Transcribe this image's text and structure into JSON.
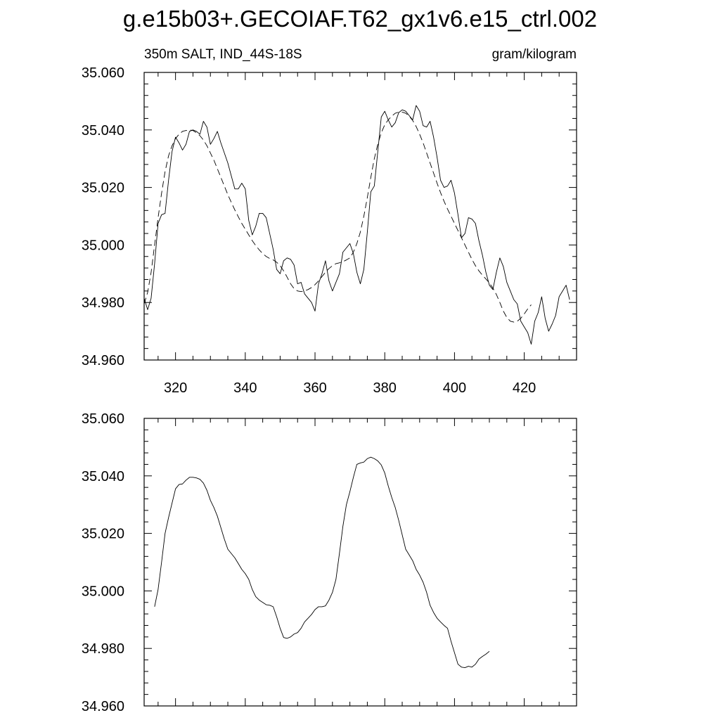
{
  "figure": {
    "title": "g.e15b03+.GECOIAF.T62_gx1v6.e15_ctrl.002",
    "left_string": "350m SALT, IND_44S-18S",
    "right_string": "gram/kilogram"
  },
  "chart_data": [
    {
      "type": "line",
      "panel": "top",
      "xlim": [
        311,
        435
      ],
      "ylim": [
        34.96,
        35.06
      ],
      "x_ticks": [
        320,
        340,
        360,
        380,
        400,
        420
      ],
      "y_ticks": [
        34.96,
        34.98,
        35.0,
        35.02,
        35.04,
        35.06
      ],
      "x_tick_labels": [
        "320",
        "340",
        "360",
        "380",
        "400",
        "420"
      ],
      "y_tick_labels": [
        "34.960",
        "34.980",
        "35.000",
        "35.020",
        "35.040",
        "35.060"
      ],
      "x_start": 311,
      "x_step": 1,
      "series": [
        {
          "style": "solid",
          "values": [
            34.9815,
            34.9775,
            34.9815,
            34.9935,
            35.0075,
            35.0105,
            35.011,
            35.0225,
            35.0325,
            35.0375,
            35.0355,
            35.033,
            35.035,
            35.0395,
            35.04,
            35.0395,
            35.0385,
            35.043,
            35.041,
            35.035,
            35.037,
            35.0395,
            35.0355,
            35.032,
            35.0285,
            35.024,
            35.0195,
            35.0195,
            35.0215,
            35.0195,
            35.0085,
            35.0035,
            35.0065,
            35.011,
            35.011,
            35.0095,
            35.004,
            34.9985,
            34.9915,
            34.99,
            34.9945,
            34.9955,
            34.995,
            34.993,
            34.9865,
            34.987,
            34.983,
            34.9815,
            34.98,
            34.977,
            34.9865,
            34.99,
            34.9945,
            34.9875,
            34.984,
            34.987,
            34.99,
            34.9975,
            34.999,
            35.0005,
            34.997,
            34.9905,
            34.9865,
            34.9915,
            35.0045,
            35.0185,
            35.0205,
            35.0325,
            35.0445,
            35.0465,
            35.0435,
            35.041,
            35.0425,
            35.046,
            35.047,
            35.0465,
            35.045,
            35.0435,
            35.0485,
            35.0465,
            35.0415,
            35.041,
            35.043,
            35.0375,
            35.0305,
            35.0225,
            35.02,
            35.0205,
            35.0225,
            35.018,
            35.0105,
            35.0025,
            35.004,
            35.0095,
            35.009,
            35.0075,
            35.0015,
            34.9965,
            34.9905,
            34.986,
            34.9845,
            34.9905,
            34.9955,
            34.9925,
            34.987,
            34.984,
            34.981,
            34.9795,
            34.9735,
            34.9715,
            34.9695,
            34.9655,
            34.9735,
            34.9765,
            34.982,
            34.9745,
            34.97,
            34.9725,
            34.9755,
            34.982,
            34.984,
            34.986,
            34.981
          ]
        },
        {
          "style": "dashed",
          "values": [
            34.9795,
            34.9835,
            34.9905,
            35.0,
            35.0095,
            35.018,
            35.0255,
            35.031,
            35.0345,
            35.037,
            35.0385,
            35.0395,
            35.0398,
            35.04,
            35.0398,
            35.039,
            35.038,
            35.0365,
            35.0345,
            35.032,
            35.0295,
            35.0265,
            35.0235,
            35.0205,
            35.0175,
            35.0148,
            35.0122,
            35.0098,
            35.0075,
            35.0055,
            35.0035,
            35.0015,
            34.9998,
            34.9983,
            34.997,
            34.996,
            34.9953,
            34.9948,
            34.994,
            34.9928,
            34.991,
            34.9888,
            34.9865,
            34.9848,
            34.984,
            34.9838,
            34.984,
            34.9845,
            34.9852,
            34.9862,
            34.9875,
            34.989,
            34.9905,
            34.9918,
            34.9928,
            34.9935,
            34.9938,
            34.9942,
            34.9948,
            34.9955,
            34.9975,
            35.0005,
            35.0045,
            35.01,
            35.0165,
            35.0235,
            35.03,
            35.035,
            35.039,
            35.0418,
            35.0435,
            35.0448,
            35.0458,
            35.0462,
            35.0462,
            35.0458,
            35.0448,
            35.0433,
            35.0412,
            35.0385,
            35.0355,
            35.032,
            35.0285,
            35.025,
            35.0215,
            35.0182,
            35.0152,
            35.0125,
            35.01,
            35.0075,
            35.005,
            35.0025,
            35.0,
            34.9975,
            34.995,
            34.9928,
            34.991,
            34.9895,
            34.9882,
            34.9868,
            34.985,
            34.9828,
            34.98,
            34.977,
            34.9748,
            34.9735,
            34.9732,
            34.9735,
            34.9745,
            34.976,
            34.9778,
            34.9792
          ]
        }
      ]
    },
    {
      "type": "line",
      "panel": "bottom",
      "xlim": [
        311,
        435
      ],
      "ylim": [
        34.96,
        35.06
      ],
      "x_ticks": [
        320,
        340,
        360,
        380,
        400,
        420
      ],
      "y_ticks": [
        34.96,
        34.98,
        35.0,
        35.02,
        35.04,
        35.06
      ],
      "y_tick_labels": [
        "34.960",
        "34.980",
        "35.000",
        "35.020",
        "35.040",
        "35.060"
      ],
      "x_start": 314,
      "x_step": 1,
      "series": [
        {
          "style": "solid",
          "values": [
            34.9945,
            35.0005,
            35.01,
            35.02,
            35.0255,
            35.0305,
            35.0355,
            35.037,
            35.0372,
            35.0385,
            35.0395,
            35.0395,
            35.0393,
            35.0388,
            35.0375,
            35.035,
            35.0315,
            35.029,
            35.026,
            35.022,
            35.018,
            35.0145,
            35.013,
            35.0115,
            35.0095,
            35.0075,
            35.006,
            35.004,
            35.0005,
            34.998,
            34.9968,
            34.996,
            34.9952,
            34.995,
            34.9945,
            34.991,
            34.987,
            34.9838,
            34.9835,
            34.984,
            34.985,
            34.9855,
            34.987,
            34.9892,
            34.9905,
            34.9918,
            34.9935,
            34.9945,
            34.9945,
            34.9948,
            34.9968,
            34.9995,
            35.004,
            35.013,
            35.0225,
            35.03,
            35.0345,
            35.0395,
            35.044,
            35.0445,
            35.0448,
            35.046,
            35.0465,
            35.046,
            35.0452,
            35.0438,
            35.041,
            35.0365,
            35.0325,
            35.029,
            35.0245,
            35.0195,
            35.0145,
            35.0125,
            35.0105,
            35.0075,
            35.0055,
            35.003,
            34.9995,
            34.995,
            34.9925,
            34.9905,
            34.9892,
            34.988,
            34.987,
            34.9825,
            34.9785,
            34.9745,
            34.9735,
            34.9733,
            34.9738,
            34.9735,
            34.9745,
            34.9763,
            34.9772,
            34.978,
            34.979
          ]
        }
      ]
    }
  ]
}
